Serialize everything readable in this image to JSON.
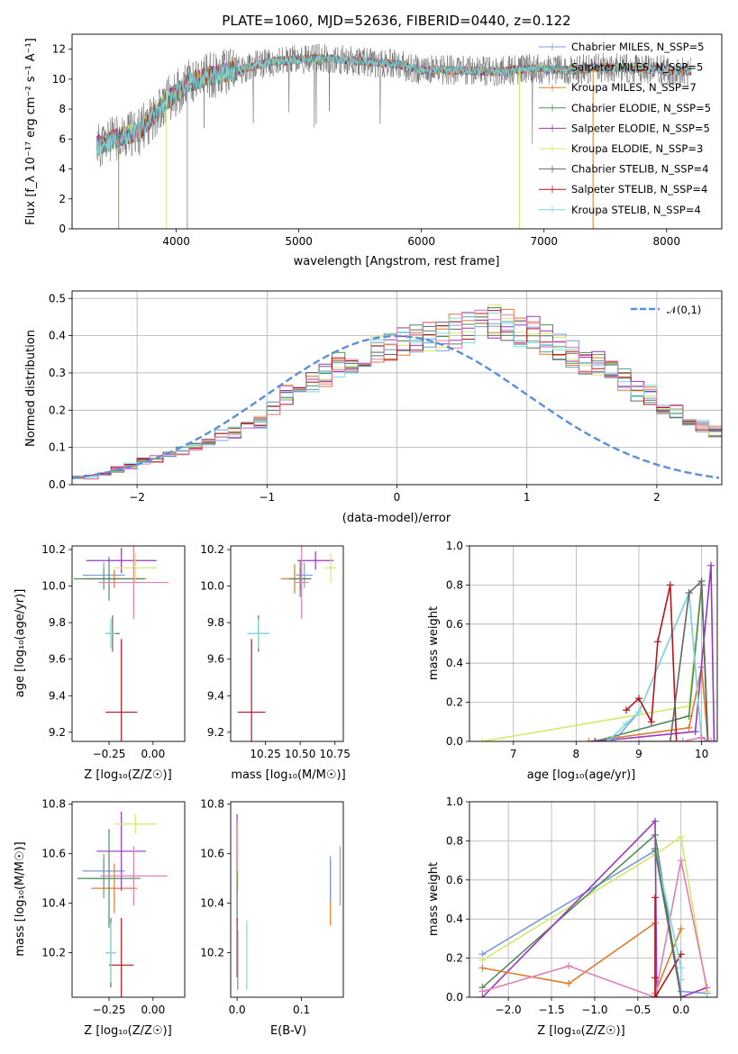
{
  "chart_data": [
    {
      "type": "line",
      "title": "PLATE=1060, MJD=52636, FIBERID=0440, z=0.122",
      "xlabel": "wavelength [Angstrom, rest frame]",
      "ylabel": "Flux [f_λ 10⁻¹⁷ erg cm⁻² s⁻¹ A⁻¹]",
      "xlim": [
        3150,
        8450
      ],
      "ylim": [
        0,
        13
      ],
      "xticks": [
        "4000",
        "5000",
        "6000",
        "7000",
        "8000"
      ],
      "yticks": [
        "0",
        "2",
        "4",
        "6",
        "8",
        "10",
        "12"
      ],
      "legend_position": "upper-right",
      "data_envelope": [
        [
          3350,
          5.5
        ],
        [
          3500,
          6.0
        ],
        [
          3700,
          6.5
        ],
        [
          3900,
          8.4
        ],
        [
          4100,
          9.8
        ],
        [
          4300,
          10.3
        ],
        [
          4500,
          10.6
        ],
        [
          4800,
          11.2
        ],
        [
          5000,
          11.3
        ],
        [
          5200,
          11.4
        ],
        [
          5500,
          11.2
        ],
        [
          5800,
          11.0
        ],
        [
          6000,
          10.6
        ],
        [
          6300,
          10.6
        ],
        [
          6600,
          10.5
        ],
        [
          6900,
          10.7
        ],
        [
          7200,
          10.6
        ],
        [
          7500,
          10.8
        ],
        [
          7800,
          10.7
        ],
        [
          8000,
          10.6
        ],
        [
          8200,
          10.5
        ]
      ],
      "series": [
        {
          "name": "Chabrier MILES, N_SSP=5",
          "color": "#7b9bd6"
        },
        {
          "name": "Salpeter MILES, N_SSP=5",
          "color": "#5ba1a8"
        },
        {
          "name": "Kroupa MILES, N_SSP=7",
          "color": "#dd7a2a"
        },
        {
          "name": "Chabrier ELODIE, N_SSP=5",
          "color": "#4f8d5b"
        },
        {
          "name": "Salpeter ELODIE, N_SSP=5",
          "color": "#9b35c0"
        },
        {
          "name": "Kroupa ELODIE, N_SSP=3",
          "color": "#d4e86b"
        },
        {
          "name": "Chabrier STELIB, N_SSP=4",
          "color": "#666666"
        },
        {
          "name": "Salpeter STELIB, N_SSP=4",
          "color": "#b3161d"
        },
        {
          "name": "Kroupa STELIB, N_SSP=4",
          "color": "#7fd8de"
        }
      ]
    },
    {
      "type": "bar",
      "xlabel": "(data-model)/error",
      "ylabel": "Normed distribution",
      "xlim": [
        -2.5,
        2.5
      ],
      "ylim": [
        0,
        0.52
      ],
      "xticks": [
        "−2",
        "−1",
        "0",
        "1",
        "2"
      ],
      "yticks": [
        "0.0",
        "0.1",
        "0.2",
        "0.3",
        "0.4",
        "0.5"
      ],
      "grid": true,
      "legend_position": "upper-right",
      "legend": [
        "𝒩(0,1)"
      ],
      "gaussian_color": "#5b8fd9",
      "bin_width": 0.1,
      "x_start": -2.5,
      "base_values": [
        0.02,
        0.02,
        0.03,
        0.04,
        0.05,
        0.065,
        0.07,
        0.08,
        0.09,
        0.1,
        0.12,
        0.13,
        0.14,
        0.155,
        0.17,
        0.205,
        0.24,
        0.255,
        0.28,
        0.3,
        0.32,
        0.33,
        0.34,
        0.36,
        0.37,
        0.385,
        0.39,
        0.4,
        0.4,
        0.41,
        0.42,
        0.43,
        0.435,
        0.42,
        0.41,
        0.405,
        0.39,
        0.37,
        0.35,
        0.33,
        0.325,
        0.3,
        0.28,
        0.25,
        0.24,
        0.215,
        0.2,
        0.18,
        0.16,
        0.14,
        0.115,
        0.1,
        0.09,
        0.08,
        0.07,
        0.06,
        0.05,
        0.04,
        0.035,
        0.03,
        0.025,
        0.025,
        0.02,
        0.02,
        0.015,
        0.01,
        0.01,
        0.01,
        0.01,
        0.01,
        0.01,
        0.01,
        0.01,
        0.01,
        0.01,
        0.01,
        0.01,
        0.01,
        0.01,
        0.01
      ]
    },
    {
      "type": "scatter",
      "xlabel": "Z [log₁₀(Z/Z☉)]",
      "ylabel": "age [log₁₀(age/yr)]",
      "xlim": [
        -0.46,
        0.18
      ],
      "ylim": [
        9.15,
        10.22
      ],
      "xticks": [
        "−0.25",
        "0.00"
      ],
      "yticks": [
        "9.2",
        "9.4",
        "9.6",
        "9.8",
        "10.0",
        "10.2"
      ],
      "points": [
        {
          "x": -0.28,
          "y": 10.06,
          "xerr": 0.12,
          "yerr": 0.07,
          "color": "#7b9bd6"
        },
        {
          "x": -0.28,
          "y": 10.04,
          "xerr": 0.1,
          "yerr": 0.06,
          "color": "#5ba1a8"
        },
        {
          "x": -0.22,
          "y": 10.04,
          "xerr": 0.18,
          "yerr": 0.05,
          "color": "#dd7a2a"
        },
        {
          "x": -0.25,
          "y": 10.04,
          "xerr": 0.2,
          "yerr": 0.12,
          "color": "#4f8d5b"
        },
        {
          "x": -0.18,
          "y": 10.14,
          "xerr": 0.2,
          "yerr": 0.07,
          "color": "#9b35c0"
        },
        {
          "x": -0.1,
          "y": 10.1,
          "xerr": 0.12,
          "yerr": 0.08,
          "color": "#d4e86b"
        },
        {
          "x": -0.23,
          "y": 9.74,
          "xerr": 0.04,
          "yerr": 0.1,
          "color": "#666666"
        },
        {
          "x": -0.18,
          "y": 9.31,
          "xerr": 0.09,
          "yerr": 0.4,
          "color": "#b3161d"
        },
        {
          "x": -0.24,
          "y": 9.74,
          "xerr": 0.03,
          "yerr": 0.08,
          "color": "#7fd8de"
        },
        {
          "x": -0.11,
          "y": 10.02,
          "xerr": 0.2,
          "yerr": 0.2,
          "color": "#e07fb4"
        }
      ]
    },
    {
      "type": "scatter",
      "xlabel": "mass [log₁₀(M/M☉)]",
      "ylabel": "",
      "xlim": [
        10.0,
        10.81
      ],
      "ylim": [
        9.15,
        10.22
      ],
      "xticks": [
        "10.25",
        "10.50",
        "10.75"
      ],
      "yticks": [
        "9.2",
        "9.4",
        "9.6",
        "9.8",
        "10.0",
        "10.2"
      ],
      "points": [
        {
          "x": 10.53,
          "y": 10.06,
          "xerr": 0.06,
          "yerr": 0.07,
          "color": "#7b9bd6"
        },
        {
          "x": 10.5,
          "y": 10.04,
          "xerr": 0.08,
          "yerr": 0.06,
          "color": "#5ba1a8"
        },
        {
          "x": 10.46,
          "y": 10.04,
          "xerr": 0.1,
          "yerr": 0.08,
          "color": "#dd7a2a"
        },
        {
          "x": 10.5,
          "y": 10.04,
          "xerr": 0.08,
          "yerr": 0.1,
          "color": "#4f8d5b"
        },
        {
          "x": 10.61,
          "y": 10.14,
          "xerr": 0.13,
          "yerr": 0.05,
          "color": "#9b35c0"
        },
        {
          "x": 10.72,
          "y": 10.1,
          "xerr": 0.04,
          "yerr": 0.08,
          "color": "#d4e86b"
        },
        {
          "x": 10.2,
          "y": 9.74,
          "xerr": 0.08,
          "yerr": 0.1,
          "color": "#666666"
        },
        {
          "x": 10.15,
          "y": 9.31,
          "xerr": 0.1,
          "yerr": 0.4,
          "color": "#b3161d"
        },
        {
          "x": 10.2,
          "y": 9.74,
          "xerr": 0.08,
          "yerr": 0.08,
          "color": "#7fd8de"
        },
        {
          "x": 10.51,
          "y": 10.02,
          "xerr": 0.05,
          "yerr": 0.2,
          "color": "#e07fb4"
        }
      ]
    },
    {
      "type": "line",
      "xlabel": "age [log₁₀(age/yr)]",
      "ylabel": "mass weight",
      "xlim": [
        6.3,
        10.25
      ],
      "ylim": [
        0,
        1.0
      ],
      "xticks": [
        "7",
        "8",
        "9",
        "10"
      ],
      "yticks": [
        "0.0",
        "0.2",
        "0.4",
        "0.6",
        "0.8",
        "1.0"
      ],
      "grid": true,
      "series": [
        {
          "color": "#d4e86b",
          "x": [
            6.5,
            9.8,
            10.0,
            10.1
          ],
          "y": [
            0.0,
            0.18,
            0.82,
            0.0
          ]
        },
        {
          "color": "#dd7a2a",
          "x": [
            8.2,
            9.8,
            10.0,
            10.1
          ],
          "y": [
            0.0,
            0.07,
            0.38,
            0.0
          ]
        },
        {
          "color": "#4f8d5b",
          "x": [
            8.3,
            9.8,
            10.0,
            10.1
          ],
          "y": [
            0.0,
            0.13,
            0.8,
            0.0
          ]
        },
        {
          "color": "#9b35c0",
          "x": [
            8.3,
            9.9,
            10.15,
            10.2
          ],
          "y": [
            0.0,
            0.05,
            0.9,
            0.0
          ]
        },
        {
          "color": "#7b9bd6",
          "x": [
            8.6,
            9.0,
            9.8,
            10.0,
            10.05
          ],
          "y": [
            0.0,
            0.15,
            0.76,
            0.0,
            0.0
          ]
        },
        {
          "color": "#7fd8de",
          "x": [
            8.5,
            8.8,
            9.0,
            9.8,
            10.0,
            10.05
          ],
          "y": [
            0.0,
            0.09,
            0.15,
            0.76,
            0.0,
            0.0
          ]
        },
        {
          "color": "#b3161d",
          "x": [
            8.8,
            9.0,
            9.2,
            9.3,
            9.5,
            9.6
          ],
          "y": [
            0.16,
            0.22,
            0.1,
            0.51,
            0.8,
            0.0
          ]
        },
        {
          "color": "#666666",
          "x": [
            9.5,
            9.8,
            10.0,
            10.1
          ],
          "y": [
            0.0,
            0.76,
            0.82,
            0.0
          ]
        },
        {
          "color": "#e07fb4",
          "x": [
            9.0,
            9.7,
            10.0,
            10.15
          ],
          "y": [
            0.0,
            0.0,
            0.02,
            0.0
          ]
        }
      ]
    },
    {
      "type": "scatter",
      "xlabel": "Z [log₁₀(Z/Z☉)]",
      "ylabel": "mass [log₁₀(M/M☉)]",
      "xlim": [
        -0.46,
        0.18
      ],
      "ylim": [
        10.02,
        10.81
      ],
      "xticks": [
        "−0.25",
        "0.00"
      ],
      "yticks": [
        "10.2",
        "10.4",
        "10.6",
        "10.8"
      ],
      "points": [
        {
          "x": -0.28,
          "y": 10.53,
          "xerr": 0.12,
          "yerr": 0.07,
          "color": "#7b9bd6"
        },
        {
          "x": -0.28,
          "y": 10.5,
          "xerr": 0.1,
          "yerr": 0.08,
          "color": "#5ba1a8"
        },
        {
          "x": -0.22,
          "y": 10.46,
          "xerr": 0.13,
          "yerr": 0.1,
          "color": "#dd7a2a"
        },
        {
          "x": -0.25,
          "y": 10.5,
          "xerr": 0.18,
          "yerr": 0.2,
          "color": "#4f8d5b"
        },
        {
          "x": -0.18,
          "y": 10.61,
          "xerr": 0.14,
          "yerr": 0.16,
          "color": "#9b35c0"
        },
        {
          "x": -0.1,
          "y": 10.72,
          "xerr": 0.12,
          "yerr": 0.04,
          "color": "#d4e86b"
        },
        {
          "x": -0.24,
          "y": 10.2,
          "xerr": 0.03,
          "yerr": 0.14,
          "color": "#666666"
        },
        {
          "x": -0.18,
          "y": 10.15,
          "xerr": 0.07,
          "yerr": 0.19,
          "color": "#b3161d"
        },
        {
          "x": -0.24,
          "y": 10.2,
          "xerr": 0.03,
          "yerr": 0.12,
          "color": "#7fd8de"
        },
        {
          "x": -0.11,
          "y": 10.51,
          "xerr": 0.19,
          "yerr": 0.12,
          "color": "#e07fb4"
        }
      ]
    },
    {
      "type": "scatter",
      "xlabel": "E(B-V)",
      "ylabel": "",
      "xlim": [
        -0.01,
        0.165
      ],
      "ylim": [
        10.02,
        10.81
      ],
      "xticks": [
        "0.0",
        "0.1"
      ],
      "yticks": [
        "10.2",
        "10.4",
        "10.6",
        "10.8"
      ],
      "points": [
        {
          "x": 0.0,
          "y": 10.53,
          "yerr": 0.07,
          "color": "#7b9bd6"
        },
        {
          "x": 0.0,
          "y": 10.6,
          "yerr": 0.16,
          "color": "#9b35c0"
        },
        {
          "x": 0.001,
          "y": 10.6,
          "yerr": 0.13,
          "color": "#d4e86b"
        },
        {
          "x": 0.0,
          "y": 10.43,
          "yerr": 0.1,
          "color": "#4f8d5b"
        },
        {
          "x": 0.0,
          "y": 10.22,
          "yerr": 0.12,
          "color": "#b3161d"
        },
        {
          "x": 0.001,
          "y": 10.17,
          "yerr": 0.12,
          "color": "#5ba1a8"
        },
        {
          "x": 0.015,
          "y": 10.19,
          "yerr": 0.14,
          "color": "#7fd8de"
        },
        {
          "x": 0.145,
          "y": 10.44,
          "yerr": 0.13,
          "color": "#dd7a2a"
        },
        {
          "x": 0.145,
          "y": 10.5,
          "yerr": 0.09,
          "color": "#7b9bd6"
        },
        {
          "x": 0.16,
          "y": 10.51,
          "yerr": 0.12,
          "color": "#e07fb4"
        }
      ]
    },
    {
      "type": "line",
      "xlabel": "Z [log₁₀(Z/Z☉)]",
      "ylabel": "mass weight",
      "xlim": [
        -2.45,
        0.42
      ],
      "ylim": [
        0,
        1.0
      ],
      "xticks": [
        "−2.0",
        "−1.5",
        "−1.0",
        "−0.5",
        "0.0"
      ],
      "yticks": [
        "0.0",
        "0.2",
        "0.4",
        "0.6",
        "0.8",
        "1.0"
      ],
      "grid": true,
      "series": [
        {
          "color": "#7b9bd6",
          "x": [
            -2.3,
            -0.3,
            0.0,
            0.3
          ],
          "y": [
            0.22,
            0.75,
            0.03,
            0.02
          ]
        },
        {
          "color": "#d4e86b",
          "x": [
            -2.3,
            -0.3,
            0.0,
            0.3
          ],
          "y": [
            0.19,
            0.73,
            0.82,
            0.03
          ]
        },
        {
          "color": "#4f8d5b",
          "x": [
            -2.3,
            -0.3,
            0.0
          ],
          "y": [
            0.05,
            0.83,
            0.0
          ]
        },
        {
          "color": "#9b35c0",
          "x": [
            -2.3,
            -0.3,
            -0.28,
            0.0,
            0.3
          ],
          "y": [
            0.0,
            0.9,
            0.0,
            0.0,
            0.05
          ]
        },
        {
          "color": "#dd7a2a",
          "x": [
            -2.3,
            -1.3,
            -0.3,
            -0.3,
            0.0
          ],
          "y": [
            0.15,
            0.07,
            0.38,
            0.02,
            0.35
          ]
        },
        {
          "color": "#e07fb4",
          "x": [
            -2.3,
            -1.3,
            -0.3,
            0.0,
            0.3
          ],
          "y": [
            0.03,
            0.16,
            0.0,
            0.7,
            0.05
          ]
        },
        {
          "color": "#b3161d",
          "x": [
            -0.3,
            -0.3,
            -0.3,
            0.0
          ],
          "y": [
            0.1,
            0.51,
            0.0,
            0.22
          ]
        },
        {
          "color": "#7fd8de",
          "x": [
            -0.3,
            0.0,
            0.0
          ],
          "y": [
            0.76,
            0.15,
            0.09
          ]
        },
        {
          "color": "#5ba1a8",
          "x": [
            -0.3,
            0.0
          ],
          "y": [
            0.75,
            0.0
          ]
        },
        {
          "color": "#666666",
          "x": [
            -0.3,
            0.0
          ],
          "y": [
            0.76,
            0.0
          ]
        }
      ]
    }
  ]
}
